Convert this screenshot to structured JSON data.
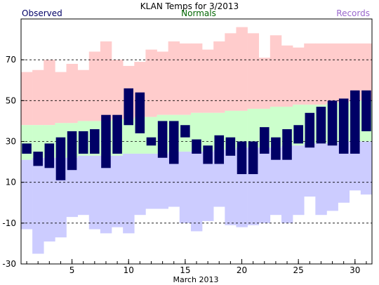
{
  "chart_data": {
    "type": "bar",
    "title": "KLAN Temps for 3/2013",
    "xlabel": "March 2013",
    "ylabel": "",
    "xlim": [
      0.5,
      31.5
    ],
    "ylim": [
      -30,
      90
    ],
    "yticks": [
      -30,
      -10,
      10,
      30,
      50,
      70
    ],
    "xticks": [
      5,
      10,
      15,
      20,
      25,
      30
    ],
    "grid_y_dashed": [
      -10,
      10,
      30,
      50,
      70
    ],
    "legend": [
      {
        "name": "Observed",
        "color": "#000066",
        "placement": "top-left"
      },
      {
        "name": "Normals",
        "color": "#006600",
        "placement": "top-center"
      },
      {
        "name": "Records",
        "color": "#9966cc",
        "placement": "top-right"
      }
    ],
    "colors": {
      "record_band": "#ffcccc",
      "normal_band": "#ccffcc",
      "record_low_band": "#ccccff",
      "observed_bar": "#000066"
    },
    "days": [
      1,
      2,
      3,
      4,
      5,
      6,
      7,
      8,
      9,
      10,
      11,
      12,
      13,
      14,
      15,
      16,
      17,
      18,
      19,
      20,
      21,
      22,
      23,
      24,
      25,
      26,
      27,
      28,
      29,
      30,
      31
    ],
    "series": [
      {
        "name": "Record High",
        "values": [
          64,
          65,
          70,
          64,
          68,
          65,
          74,
          79,
          70,
          67,
          69,
          75,
          74,
          79,
          78,
          78,
          75,
          79,
          83,
          86,
          83,
          71,
          82,
          77,
          76,
          78,
          78,
          78,
          78,
          78,
          78
        ]
      },
      {
        "name": "Normal High",
        "values": [
          38,
          38,
          38,
          39,
          39,
          40,
          40,
          40,
          41,
          41,
          42,
          42,
          43,
          43,
          43,
          44,
          44,
          44,
          45,
          45,
          46,
          46,
          47,
          47,
          48,
          48,
          48,
          49,
          49,
          50,
          50
        ]
      },
      {
        "name": "Normal Low",
        "values": [
          21,
          22,
          22,
          22,
          22,
          23,
          23,
          23,
          23,
          24,
          24,
          24,
          24,
          25,
          25,
          25,
          25,
          26,
          26,
          27,
          27,
          27,
          27,
          28,
          28,
          29,
          29,
          29,
          30,
          30,
          30
        ]
      },
      {
        "name": "Record Low",
        "values": [
          -13,
          -25,
          -19,
          -17,
          -7,
          -6,
          -13,
          -15,
          -12,
          -15,
          -6,
          -3,
          -3,
          -2,
          -10,
          -14,
          -9,
          -2,
          -11,
          -12,
          -11,
          -10,
          -6,
          -10,
          -6,
          3,
          -6,
          -4,
          0,
          6,
          4
        ]
      },
      {
        "name": "Observed High",
        "values": [
          29,
          25,
          29,
          32,
          35,
          35,
          36,
          43,
          43,
          56,
          54,
          32,
          40,
          40,
          38,
          31,
          28,
          33,
          32,
          30,
          30,
          37,
          32,
          36,
          38,
          44,
          47,
          50,
          51,
          55,
          55
        ]
      },
      {
        "name": "Observed Low",
        "values": [
          24,
          18,
          17,
          11,
          16,
          24,
          24,
          17,
          24,
          38,
          34,
          28,
          22,
          19,
          32,
          24,
          19,
          19,
          23,
          14,
          14,
          24,
          21,
          21,
          29,
          27,
          29,
          28,
          24,
          24,
          35
        ]
      }
    ]
  }
}
